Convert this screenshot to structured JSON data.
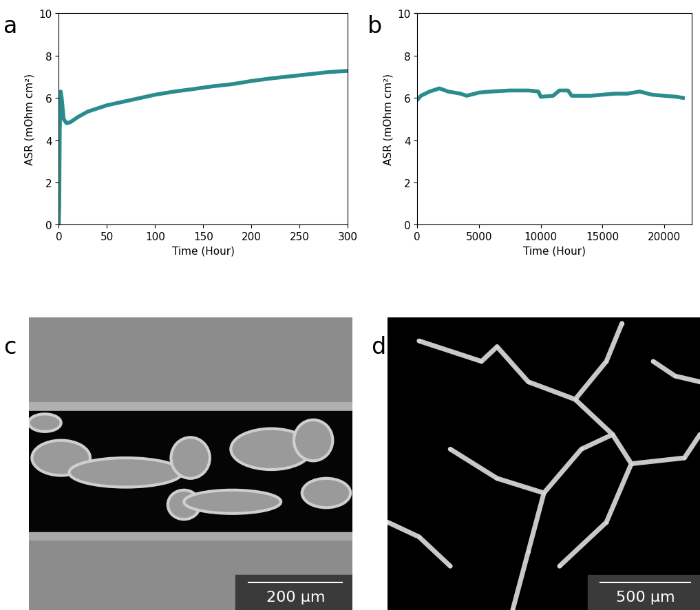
{
  "chart_data": [
    {
      "type": "line",
      "panel_label": "a",
      "x_label": "Time (Hour)",
      "y_label": "ASR (mOhm cm²)",
      "xlim": [
        0,
        300
      ],
      "xticks": [
        0,
        50,
        100,
        150,
        200,
        250,
        300
      ],
      "ylim": [
        0,
        10
      ],
      "yticks": [
        0,
        2,
        4,
        6,
        8,
        10
      ],
      "color": "#2a8c8c",
      "x": [
        0,
        0.5,
        1,
        2,
        3,
        5,
        8,
        12,
        20,
        30,
        40,
        50,
        60,
        75,
        90,
        100,
        120,
        140,
        160,
        180,
        200,
        220,
        240,
        260,
        280,
        300
      ],
      "values": [
        0,
        1.0,
        4.5,
        6.3,
        6.0,
        5.0,
        4.8,
        4.85,
        5.1,
        5.35,
        5.5,
        5.65,
        5.75,
        5.9,
        6.05,
        6.15,
        6.3,
        6.42,
        6.55,
        6.65,
        6.8,
        6.92,
        7.02,
        7.12,
        7.22,
        7.28
      ]
    },
    {
      "type": "line",
      "panel_label": "b",
      "x_label": "Time (Hour)",
      "y_label": "ASR (mOhm cm²)",
      "xlim": [
        0,
        22200
      ],
      "xticks": [
        0,
        5000,
        10000,
        15000,
        20000
      ],
      "ylim": [
        0,
        10
      ],
      "yticks": [
        0,
        2,
        4,
        6,
        8,
        10
      ],
      "color": "#2a8c8c",
      "x": [
        0,
        300,
        1000,
        1800,
        2500,
        3500,
        4000,
        5000,
        6000,
        7500,
        9000,
        9800,
        10000,
        11000,
        11500,
        12200,
        12500,
        14000,
        15000,
        16000,
        17000,
        18000,
        19000,
        20000,
        21000,
        21500
      ],
      "values": [
        5.9,
        6.1,
        6.3,
        6.45,
        6.3,
        6.2,
        6.1,
        6.25,
        6.3,
        6.35,
        6.35,
        6.3,
        6.05,
        6.1,
        6.35,
        6.35,
        6.1,
        6.1,
        6.15,
        6.2,
        6.2,
        6.3,
        6.15,
        6.1,
        6.05,
        6.0
      ]
    }
  ],
  "images": [
    {
      "panel_label": "c",
      "scale_bar": "200 µm"
    },
    {
      "panel_label": "d",
      "scale_bar": "500 µm"
    }
  ]
}
